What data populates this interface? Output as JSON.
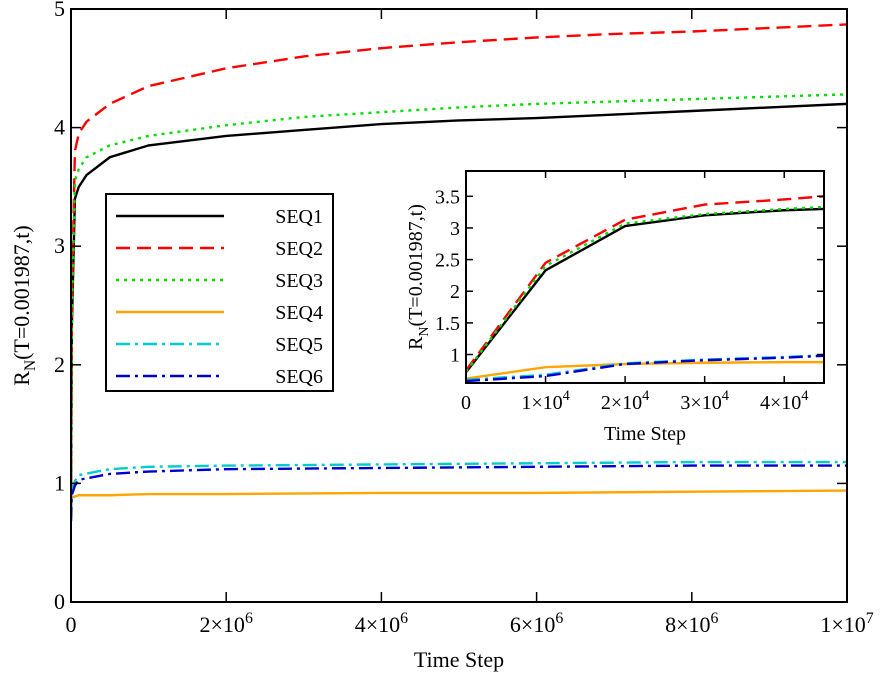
{
  "chart_data": [
    {
      "id": "main",
      "type": "line",
      "xlabel": "Time Step",
      "ylabel": "R_N(T=0.001987,t)",
      "ylabel_main": "R",
      "ylabel_sub": "N",
      "ylabel_rest": "(T=0.001987,t)",
      "xlim": [
        0,
        10000000
      ],
      "ylim": [
        0,
        5
      ],
      "grid": false,
      "legend_position": "middle-left",
      "xticks": [
        {
          "value": 0,
          "label": "0"
        },
        {
          "value": 2000000,
          "label": "2×10",
          "exp": "6"
        },
        {
          "value": 4000000,
          "label": "4×10",
          "exp": "6"
        },
        {
          "value": 6000000,
          "label": "6×10",
          "exp": "6"
        },
        {
          "value": 8000000,
          "label": "8×10",
          "exp": "6"
        },
        {
          "value": 10000000,
          "label": "1×10",
          "exp": "7"
        }
      ],
      "yticks": [
        {
          "value": 0,
          "label": "0"
        },
        {
          "value": 1,
          "label": "1"
        },
        {
          "value": 2,
          "label": "2"
        },
        {
          "value": 3,
          "label": "3"
        },
        {
          "value": 4,
          "label": "4"
        },
        {
          "value": 5,
          "label": "5"
        }
      ],
      "series": [
        {
          "name": "SEQ1",
          "color": "#000000",
          "dash": "",
          "x": [
            0,
            10000,
            50000,
            100000,
            200000,
            500000,
            1000000,
            2000000,
            3000000,
            4000000,
            5000000,
            6000000,
            7000000,
            8000000,
            9000000,
            10000000
          ],
          "y": [
            0.8,
            2.3,
            3.4,
            3.5,
            3.6,
            3.75,
            3.85,
            3.93,
            3.98,
            4.03,
            4.06,
            4.08,
            4.11,
            4.14,
            4.17,
            4.2
          ]
        },
        {
          "name": "SEQ2",
          "color": "#ff0000",
          "dash": "14,7",
          "x": [
            0,
            10000,
            50000,
            100000,
            200000,
            500000,
            1000000,
            2000000,
            3000000,
            4000000,
            5000000,
            6000000,
            7000000,
            8000000,
            9000000,
            10000000
          ],
          "y": [
            0.8,
            2.5,
            3.8,
            3.95,
            4.05,
            4.2,
            4.35,
            4.5,
            4.6,
            4.67,
            4.72,
            4.76,
            4.79,
            4.81,
            4.84,
            4.87
          ]
        },
        {
          "name": "SEQ3",
          "color": "#00dd00",
          "dash": "3,5",
          "x": [
            0,
            10000,
            50000,
            100000,
            200000,
            500000,
            1000000,
            2000000,
            3000000,
            4000000,
            5000000,
            6000000,
            7000000,
            8000000,
            9000000,
            10000000
          ],
          "y": [
            0.8,
            2.4,
            3.55,
            3.65,
            3.75,
            3.85,
            3.93,
            4.02,
            4.09,
            4.13,
            4.17,
            4.2,
            4.22,
            4.24,
            4.26,
            4.28
          ]
        },
        {
          "name": "SEQ4",
          "color": "#ffa500",
          "dash": "",
          "x": [
            0,
            10000,
            50000,
            100000,
            500000,
            1000000,
            2000000,
            4000000,
            6000000,
            8000000,
            10000000
          ],
          "y": [
            0.85,
            0.88,
            0.89,
            0.9,
            0.9,
            0.91,
            0.91,
            0.92,
            0.92,
            0.93,
            0.94
          ]
        },
        {
          "name": "SEQ5",
          "color": "#00cccc",
          "dash": "14,5,3,5",
          "x": [
            0,
            10000,
            50000,
            100000,
            500000,
            1000000,
            2000000,
            4000000,
            6000000,
            8000000,
            10000000
          ],
          "y": [
            0.7,
            0.9,
            1.02,
            1.07,
            1.12,
            1.14,
            1.15,
            1.16,
            1.17,
            1.18,
            1.18
          ]
        },
        {
          "name": "SEQ6",
          "color": "#0000cc",
          "dash": "14,5,3,5",
          "x": [
            0,
            10000,
            50000,
            100000,
            500000,
            1000000,
            2000000,
            4000000,
            6000000,
            8000000,
            10000000
          ],
          "y": [
            0.68,
            0.9,
            0.98,
            1.03,
            1.08,
            1.1,
            1.12,
            1.13,
            1.14,
            1.15,
            1.15
          ]
        }
      ]
    },
    {
      "id": "inset",
      "type": "line",
      "xlabel": "Time Step",
      "ylabel": "R_N(T=0.001987,t)",
      "ylabel_main": "R",
      "ylabel_sub": "N",
      "ylabel_rest": "(T=0.001987,t)",
      "xlim": [
        0,
        45000
      ],
      "ylim": [
        0.55,
        3.9
      ],
      "grid": false,
      "xticks": [
        {
          "value": 0,
          "label": "0"
        },
        {
          "value": 10000,
          "label": "1×10",
          "exp": "4"
        },
        {
          "value": 20000,
          "label": "2×10",
          "exp": "4"
        },
        {
          "value": 30000,
          "label": "3×10",
          "exp": "4"
        },
        {
          "value": 40000,
          "label": "4×10",
          "exp": "4"
        }
      ],
      "yticks": [
        {
          "value": 1,
          "label": "1"
        },
        {
          "value": 1.5,
          "label": "1.5"
        },
        {
          "value": 2,
          "label": "2"
        },
        {
          "value": 2.5,
          "label": "2.5"
        },
        {
          "value": 3,
          "label": "3"
        },
        {
          "value": 3.5,
          "label": "3.5"
        }
      ],
      "series": [
        {
          "name": "SEQ1",
          "color": "#000000",
          "dash": "",
          "x": [
            0,
            10000,
            20000,
            30000,
            40000,
            45000
          ],
          "y": [
            0.72,
            2.33,
            3.03,
            3.2,
            3.28,
            3.3
          ]
        },
        {
          "name": "SEQ2",
          "color": "#ff0000",
          "dash": "14,7",
          "x": [
            0,
            10000,
            20000,
            30000,
            40000,
            45000
          ],
          "y": [
            0.75,
            2.45,
            3.13,
            3.37,
            3.45,
            3.5
          ]
        },
        {
          "name": "SEQ3",
          "color": "#00dd00",
          "dash": "3,5",
          "x": [
            0,
            10000,
            20000,
            30000,
            40000,
            45000
          ],
          "y": [
            0.73,
            2.4,
            3.07,
            3.22,
            3.3,
            3.33
          ]
        },
        {
          "name": "SEQ4",
          "color": "#ffa500",
          "dash": "",
          "x": [
            0,
            10000,
            20000,
            30000,
            40000,
            45000
          ],
          "y": [
            0.62,
            0.8,
            0.85,
            0.87,
            0.88,
            0.88
          ]
        },
        {
          "name": "SEQ5",
          "color": "#00cccc",
          "dash": "14,5,3,5",
          "x": [
            0,
            10000,
            20000,
            30000,
            40000,
            45000
          ],
          "y": [
            0.6,
            0.68,
            0.86,
            0.92,
            0.96,
            0.99
          ]
        },
        {
          "name": "SEQ6",
          "color": "#0000cc",
          "dash": "14,5,3,5",
          "x": [
            0,
            10000,
            20000,
            30000,
            40000,
            45000
          ],
          "y": [
            0.58,
            0.66,
            0.85,
            0.91,
            0.95,
            0.98
          ]
        }
      ]
    }
  ]
}
